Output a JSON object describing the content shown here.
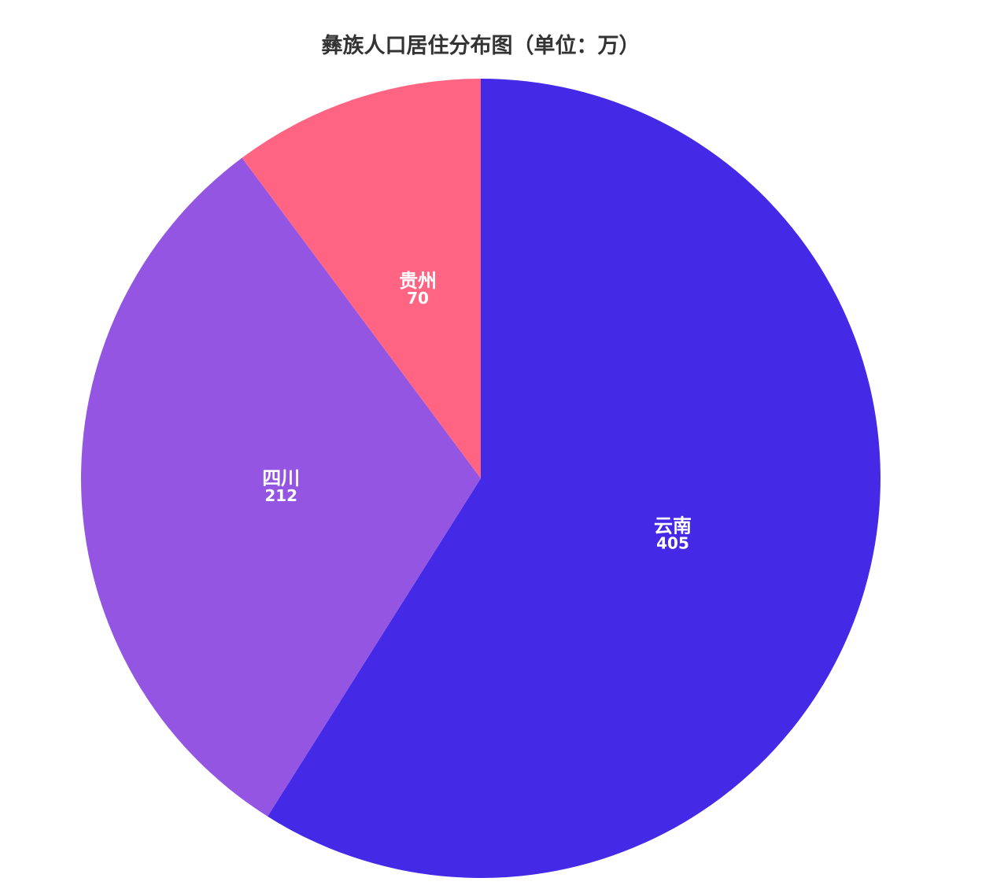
{
  "chart_data": {
    "type": "pie",
    "title": "彝族人口居住分布图（单位：万）",
    "slices": [
      {
        "name": "云南",
        "value": 405,
        "color": "#4429e6"
      },
      {
        "name": "四川",
        "value": 212,
        "color": "#9455e3"
      },
      {
        "name": "贵州",
        "value": 70,
        "color": "#ff6482"
      }
    ],
    "start_angle": "12 o'clock",
    "direction": "clockwise",
    "labels": "inside, name and value"
  }
}
